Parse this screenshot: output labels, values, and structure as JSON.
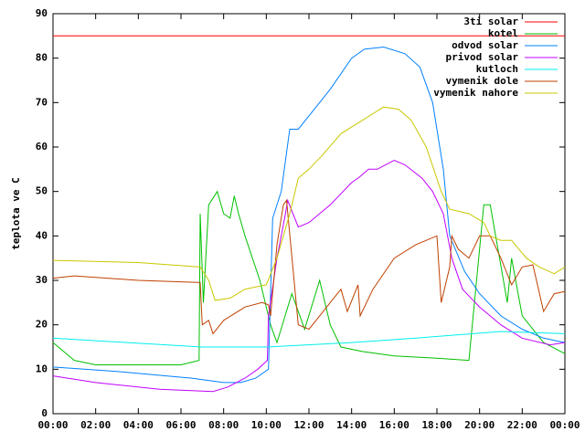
{
  "chart_data": {
    "type": "line",
    "y_label": "teplota ve C",
    "xlim": [
      0,
      24
    ],
    "xticks": [
      {
        "value": 0,
        "label": "00:00"
      },
      {
        "value": 2,
        "label": "02:00"
      },
      {
        "value": 4,
        "label": "04:00"
      },
      {
        "value": 6,
        "label": "06:00"
      },
      {
        "value": 8,
        "label": "08:00"
      },
      {
        "value": 10,
        "label": "10:00"
      },
      {
        "value": 12,
        "label": "12:00"
      },
      {
        "value": 14,
        "label": "14:00"
      },
      {
        "value": 16,
        "label": "16:00"
      },
      {
        "value": 18,
        "label": "18:00"
      },
      {
        "value": 20,
        "label": "20:00"
      },
      {
        "value": 22,
        "label": "22:00"
      },
      {
        "value": 24,
        "label": "00:00"
      }
    ],
    "ylim": [
      0,
      90
    ],
    "yticks": [
      0,
      10,
      20,
      30,
      40,
      50,
      60,
      70,
      80,
      90
    ],
    "grid": false,
    "legend": "top-right",
    "series": [
      {
        "name": "3ti solar",
        "color": "#ff0000",
        "x": [
          0,
          24
        ],
        "values": [
          85,
          85
        ]
      },
      {
        "name": "kotel",
        "color": "#00c000",
        "x": [
          0,
          1,
          2,
          3,
          4,
          5,
          6,
          6.85,
          6.9,
          7.05,
          7.3,
          7.7,
          8,
          8.3,
          8.5,
          8.7,
          9,
          9.7,
          10.2,
          10.5,
          11.2,
          11.8,
          12.5,
          13,
          13.5,
          14.5,
          16,
          18,
          19.5,
          20.2,
          20.5,
          21.3,
          21.5,
          22,
          23,
          24
        ],
        "values": [
          16,
          12,
          11,
          11,
          11,
          11,
          11,
          12,
          45,
          25,
          47,
          50,
          45,
          44,
          49,
          45,
          40,
          30,
          20,
          16,
          27,
          19,
          30,
          20,
          15,
          14,
          13,
          12.5,
          12,
          47,
          47,
          25,
          35,
          22,
          16,
          13.5
        ]
      },
      {
        "name": "odvod solar",
        "color": "#0080ff",
        "x": [
          0,
          3,
          6.5,
          8,
          8.8,
          9.5,
          10.1,
          10.3,
          10.7,
          11.1,
          11.5,
          12,
          13,
          14,
          14.6,
          15.5,
          16.5,
          17.2,
          17.8,
          18.3,
          18.6,
          19.3,
          20,
          21,
          22,
          23,
          24
        ],
        "values": [
          10.5,
          9.5,
          8,
          7,
          7,
          8,
          10,
          44,
          50,
          64,
          64,
          67,
          73,
          80,
          82,
          82.5,
          81,
          78,
          70,
          55,
          40,
          32,
          27,
          22,
          19,
          17,
          16
        ]
      },
      {
        "name": "privod solar",
        "color": "#c000ff",
        "x": [
          0,
          2,
          5,
          7.5,
          8.2,
          9,
          9.6,
          10.05,
          10.1,
          10.5,
          10.9,
          11,
          11.5,
          12,
          13,
          14,
          14.3,
          14.8,
          15.2,
          16,
          16.5,
          17.3,
          17.8,
          18.3,
          18.7,
          19.2,
          20,
          21,
          22,
          23.3,
          24
        ],
        "values": [
          8.5,
          7,
          5.5,
          5,
          6,
          8,
          10,
          12,
          22,
          35,
          45,
          48,
          42,
          43,
          47,
          52,
          53,
          55,
          55,
          57,
          56,
          53,
          50,
          45,
          35,
          28,
          24,
          20,
          17,
          15.5,
          16
        ]
      },
      {
        "name": "kutloch",
        "color": "#00eeee",
        "x": [
          0,
          7,
          10,
          14,
          17,
          21,
          24
        ],
        "values": [
          17,
          15,
          15,
          16,
          17,
          18.5,
          18
        ]
      },
      {
        "name": "vymenik dole",
        "color": "#c04000",
        "x": [
          0,
          1,
          4,
          6.9,
          7,
          7.3,
          7.5,
          8,
          9,
          9.8,
          10.1,
          10.2,
          10.5,
          10.8,
          10.95,
          11.5,
          12,
          12.5,
          13,
          13.5,
          13.8,
          14.3,
          14.4,
          15,
          16,
          17,
          18,
          18.2,
          18.6,
          18.7,
          19,
          19.5,
          20,
          20.5,
          21,
          21.5,
          22,
          22.5,
          23,
          23.5,
          24
        ],
        "values": [
          30.5,
          31,
          30,
          29.5,
          20,
          21,
          18,
          21,
          24,
          25,
          24.5,
          22,
          38,
          47,
          48,
          20,
          19,
          22,
          25,
          28,
          23,
          29,
          22,
          28,
          35,
          38,
          40,
          25,
          33,
          40,
          37,
          35,
          40,
          40,
          35,
          29,
          33,
          33.5,
          23,
          27,
          27.5
        ]
      },
      {
        "name": "vymenik nahore",
        "color": "#c8c800",
        "x": [
          0,
          4,
          6.9,
          7.3,
          7.6,
          8.3,
          9,
          9.5,
          10,
          10.5,
          11.1,
          11.5,
          12,
          12.6,
          13.5,
          14.5,
          15.5,
          16.2,
          16.8,
          17.5,
          18.2,
          18.6,
          19.5,
          20.2,
          20.5,
          21,
          21.5,
          22.2,
          22.8,
          23.5,
          24
        ],
        "values": [
          34.5,
          34,
          33,
          30,
          25.5,
          26,
          28,
          28.5,
          29,
          35,
          45,
          53,
          55,
          58,
          63,
          66,
          69,
          68.5,
          66,
          60,
          50,
          46,
          45,
          43,
          40,
          39,
          39,
          35,
          33,
          31.5,
          33
        ]
      }
    ]
  }
}
